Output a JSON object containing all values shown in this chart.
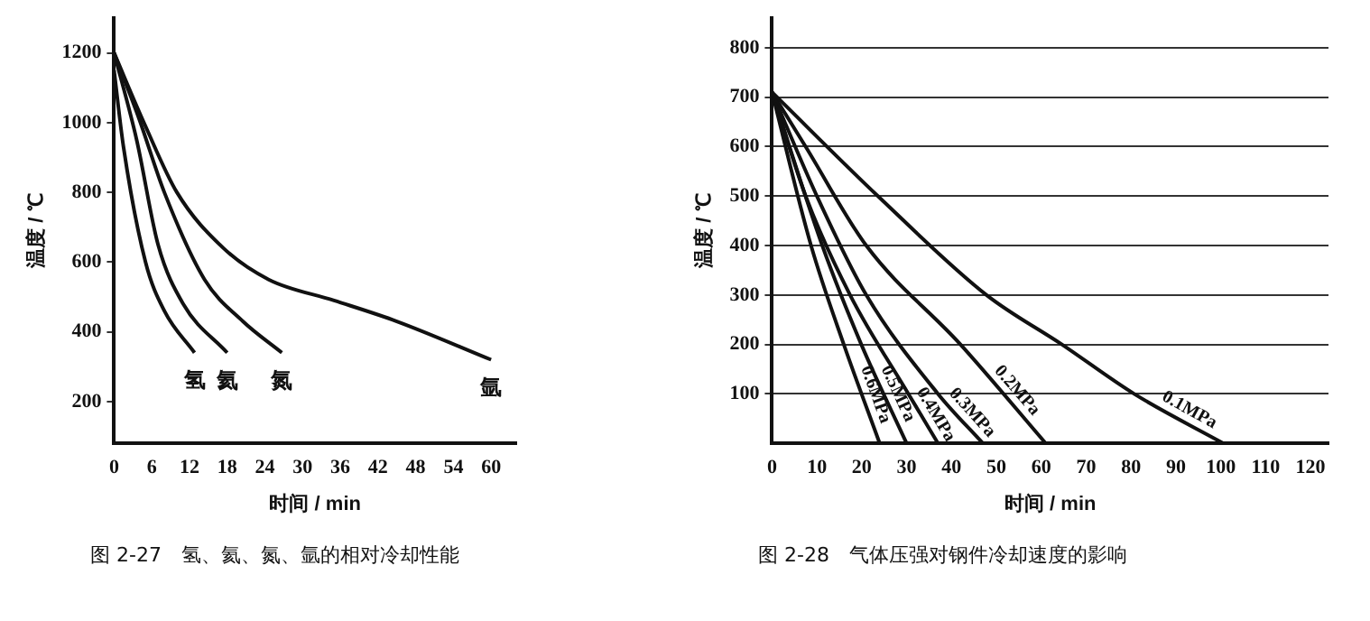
{
  "chart_data": [
    {
      "type": "line",
      "xlabel": "时间 / min",
      "ylabel": "温度 / ℃",
      "xlim": [
        0,
        64
      ],
      "ylim": [
        80,
        1300
      ],
      "xticks": [
        0,
        6,
        12,
        18,
        24,
        30,
        36,
        42,
        48,
        54,
        60
      ],
      "yticks": [
        200,
        400,
        600,
        800,
        1000,
        1200
      ],
      "grid": false,
      "legend": false,
      "marker": "none",
      "line_style": "solid",
      "series": [
        {
          "name": "氢",
          "color": "#111111",
          "x": [
            0,
            1.5,
            5,
            8,
            12.8
          ],
          "values": [
            1150,
            930,
            600,
            460,
            340
          ]
        },
        {
          "name": "氦",
          "color": "#111111",
          "x": [
            0,
            3.6,
            7,
            11,
            18
          ],
          "values": [
            1200,
            950,
            650,
            480,
            340
          ]
        },
        {
          "name": "氮",
          "color": "#111111",
          "x": [
            0,
            4,
            8,
            14.4,
            20.5,
            26.7
          ],
          "values": [
            1200,
            1010,
            800,
            550,
            430,
            340
          ]
        },
        {
          "name": "氩",
          "color": "#111111",
          "x": [
            0,
            5,
            10,
            17.4,
            24.6,
            35,
            45,
            60
          ],
          "values": [
            1200,
            990,
            800,
            640,
            550,
            490,
            430,
            320
          ]
        }
      ],
      "annotations": [
        "图 2-27　氢、氦、氮、氩的相对冷却性能"
      ]
    },
    {
      "type": "line",
      "xlabel": "时间 / min",
      "ylabel": "温度 / ℃",
      "xlim": [
        0,
        124
      ],
      "ylim": [
        0,
        860
      ],
      "xticks": [
        0,
        10,
        20,
        30,
        40,
        50,
        60,
        70,
        80,
        90,
        100,
        110,
        120
      ],
      "yticks": [
        100,
        200,
        300,
        400,
        500,
        600,
        700,
        800
      ],
      "grid": "y",
      "legend": false,
      "marker": "none",
      "line_style": "solid",
      "series": [
        {
          "name": "0.1MPa",
          "color": "#111111",
          "x": [
            0,
            23.6,
            47.8,
            64.6,
            80.7,
            100.6
          ],
          "values": [
            710,
            500,
            300,
            200,
            100,
            0
          ]
        },
        {
          "name": "0.2MPa",
          "color": "#111111",
          "x": [
            0,
            7.5,
            21,
            42,
            61
          ],
          "values": [
            710,
            600,
            400,
            200,
            0
          ]
        },
        {
          "name": "0.3MPa",
          "color": "#111111",
          "x": [
            0,
            10,
            21,
            37,
            47
          ],
          "values": [
            710,
            500,
            300,
            100,
            0
          ]
        },
        {
          "name": "0.4MPa",
          "color": "#111111",
          "x": [
            0,
            7.5,
            17.4,
            30.4,
            37
          ],
          "values": [
            710,
            500,
            300,
            100,
            0
          ]
        },
        {
          "name": "0.5MPa",
          "color": "#111111",
          "x": [
            0,
            11.2,
            19.9,
            30
          ],
          "values": [
            710,
            400,
            200,
            0
          ]
        },
        {
          "name": "0.6MPa",
          "color": "#111111",
          "x": [
            0,
            8.7,
            16,
            24
          ],
          "values": [
            710,
            400,
            200,
            0
          ]
        }
      ],
      "annotations": [
        "图 2-28　气体压强对钢件冷却速度的影响"
      ]
    }
  ]
}
